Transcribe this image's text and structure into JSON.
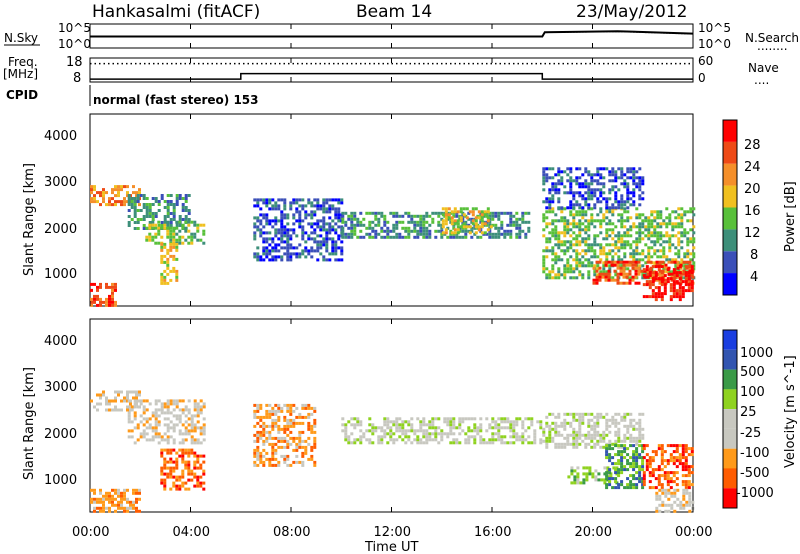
{
  "header": {
    "station": "Hankasalmi (fitACF)",
    "beam": "Beam 14",
    "date": "23/May/2012"
  },
  "labels": {
    "nsky": "N.Sky",
    "nsearch": "N.Search",
    "freq": "Freq.",
    "freq_unit": "[MHz]",
    "nave": "Nave",
    "cpid": "CPID",
    "cpid_text": "normal (fast stereo) 153",
    "legend_dots": "........",
    "nave_dots": "...."
  },
  "colors": {
    "power_scale": [
      "#0000ff",
      "#3b4fb8",
      "#3d8f7a",
      "#58c03a",
      "#f0c020",
      "#f58f2a",
      "#ee4a16",
      "#ff0000"
    ],
    "velocity_scale": [
      "#ff0000",
      "#ff5c00",
      "#ff9a1a",
      "#c8c8c0",
      "#c8c8c0",
      "#8fd21f",
      "#3a9a47",
      "#3255b0",
      "#1a3ee0"
    ]
  },
  "chart_data": [
    {
      "type": "line",
      "panel": "noise",
      "y_left_ticks": [
        "10^5",
        "10^0"
      ],
      "y_right_ticks": [
        "10^5",
        "10^0"
      ],
      "series": [
        {
          "name": "N.Sky",
          "x": [
            0,
            6,
            12,
            18,
            18.1,
            21,
            24
          ],
          "y": [
            2.4,
            2.4,
            2.4,
            2.4,
            3.3,
            3.5,
            3.0
          ]
        },
        {
          "name": "N.Search",
          "x": [
            0,
            6,
            12,
            18,
            18.1,
            21,
            24
          ],
          "y": [
            2.3,
            2.3,
            2.3,
            2.3,
            3.2,
            3.4,
            2.9
          ]
        }
      ]
    },
    {
      "type": "line",
      "panel": "frequency",
      "y_left_ticks": [
        "18",
        "8"
      ],
      "y_right_ticks": [
        "60",
        "0"
      ],
      "series": [
        {
          "name": "Freq.",
          "x": [
            0,
            6,
            6,
            18,
            18,
            24
          ],
          "y": [
            9.2,
            9.2,
            11.5,
            11.5,
            9.2,
            9.2
          ]
        },
        {
          "name": "Nave",
          "x": [
            0,
            24
          ],
          "y": [
            46,
            46
          ]
        }
      ]
    },
    {
      "type": "heatmap",
      "panel": "power",
      "xlabel": "",
      "ylabel": "Slant Range [km]",
      "xlim": [
        0,
        24
      ],
      "ylim": [
        180,
        4500
      ],
      "y_ticks": [
        "4000",
        "3000",
        "2000",
        "1000"
      ],
      "colorbar_label": "Power [dB]",
      "colorbar_ticks": [
        "28",
        "24",
        "20",
        "16",
        "12",
        "8",
        "4"
      ],
      "regions": [
        {
          "x0": 0,
          "x1": 2,
          "y0": 2480,
          "y1": 2900,
          "level": 5
        },
        {
          "x0": 1.5,
          "x1": 4,
          "y0": 1900,
          "y1": 2700,
          "level": 2
        },
        {
          "x0": 2.2,
          "x1": 4.5,
          "y0": 1600,
          "y1": 2100,
          "level": 3
        },
        {
          "x0": 0,
          "x1": 1,
          "y0": 200,
          "y1": 700,
          "level": 6
        },
        {
          "x0": 2.8,
          "x1": 3.4,
          "y0": 700,
          "y1": 1600,
          "level": 4
        },
        {
          "x0": 6.5,
          "x1": 10,
          "y0": 1200,
          "y1": 2600,
          "level": 1
        },
        {
          "x0": 10,
          "x1": 17.5,
          "y0": 1700,
          "y1": 2300,
          "level": 2
        },
        {
          "x0": 14,
          "x1": 16,
          "y0": 1800,
          "y1": 2400,
          "level": 4
        },
        {
          "x0": 18,
          "x1": 24,
          "y0": 800,
          "y1": 2400,
          "level": 3
        },
        {
          "x0": 20,
          "x1": 24,
          "y0": 700,
          "y1": 1200,
          "level": 6
        },
        {
          "x0": 22,
          "x1": 24,
          "y0": 300,
          "y1": 1100,
          "level": 7
        },
        {
          "x0": 18,
          "x1": 22,
          "y0": 2400,
          "y1": 3300,
          "level": 1
        }
      ]
    },
    {
      "type": "heatmap",
      "panel": "velocity",
      "xlabel": "Time UT",
      "ylabel": "Slant Range [km]",
      "xlim": [
        0,
        24
      ],
      "ylim": [
        180,
        4500
      ],
      "y_ticks": [
        "4000",
        "3000",
        "2000",
        "1000"
      ],
      "x_ticks": [
        "00:00",
        "04:00",
        "08:00",
        "12:00",
        "16:00",
        "20:00",
        "00:00"
      ],
      "colorbar_label": "Velocity [m s^-1]",
      "colorbar_ticks": [
        "1000",
        "500",
        "100",
        "25",
        "-25",
        "-100",
        "-500",
        "-1000"
      ],
      "regions": [
        {
          "x0": 0,
          "x1": 2,
          "y0": 2480,
          "y1": 2900,
          "level": 3
        },
        {
          "x0": 1.5,
          "x1": 4.5,
          "y0": 1700,
          "y1": 2700,
          "level": 3
        },
        {
          "x0": 0,
          "x1": 2,
          "y0": 200,
          "y1": 700,
          "level": 2
        },
        {
          "x0": 2.8,
          "x1": 4.5,
          "y0": 700,
          "y1": 1600,
          "level": 1
        },
        {
          "x0": 6.5,
          "x1": 9,
          "y0": 1200,
          "y1": 2600,
          "level": 2
        },
        {
          "x0": 10,
          "x1": 18,
          "y0": 1700,
          "y1": 2300,
          "level": 4
        },
        {
          "x0": 18,
          "x1": 22,
          "y0": 1600,
          "y1": 2400,
          "level": 4
        },
        {
          "x0": 19,
          "x1": 21,
          "y0": 800,
          "y1": 1200,
          "level": 5
        },
        {
          "x0": 20.5,
          "x1": 22,
          "y0": 700,
          "y1": 1700,
          "level": 6
        },
        {
          "x0": 22,
          "x1": 24,
          "y0": 700,
          "y1": 1700,
          "level": 1
        },
        {
          "x0": 22.5,
          "x1": 24,
          "y0": 200,
          "y1": 700,
          "level": 3
        }
      ]
    }
  ]
}
